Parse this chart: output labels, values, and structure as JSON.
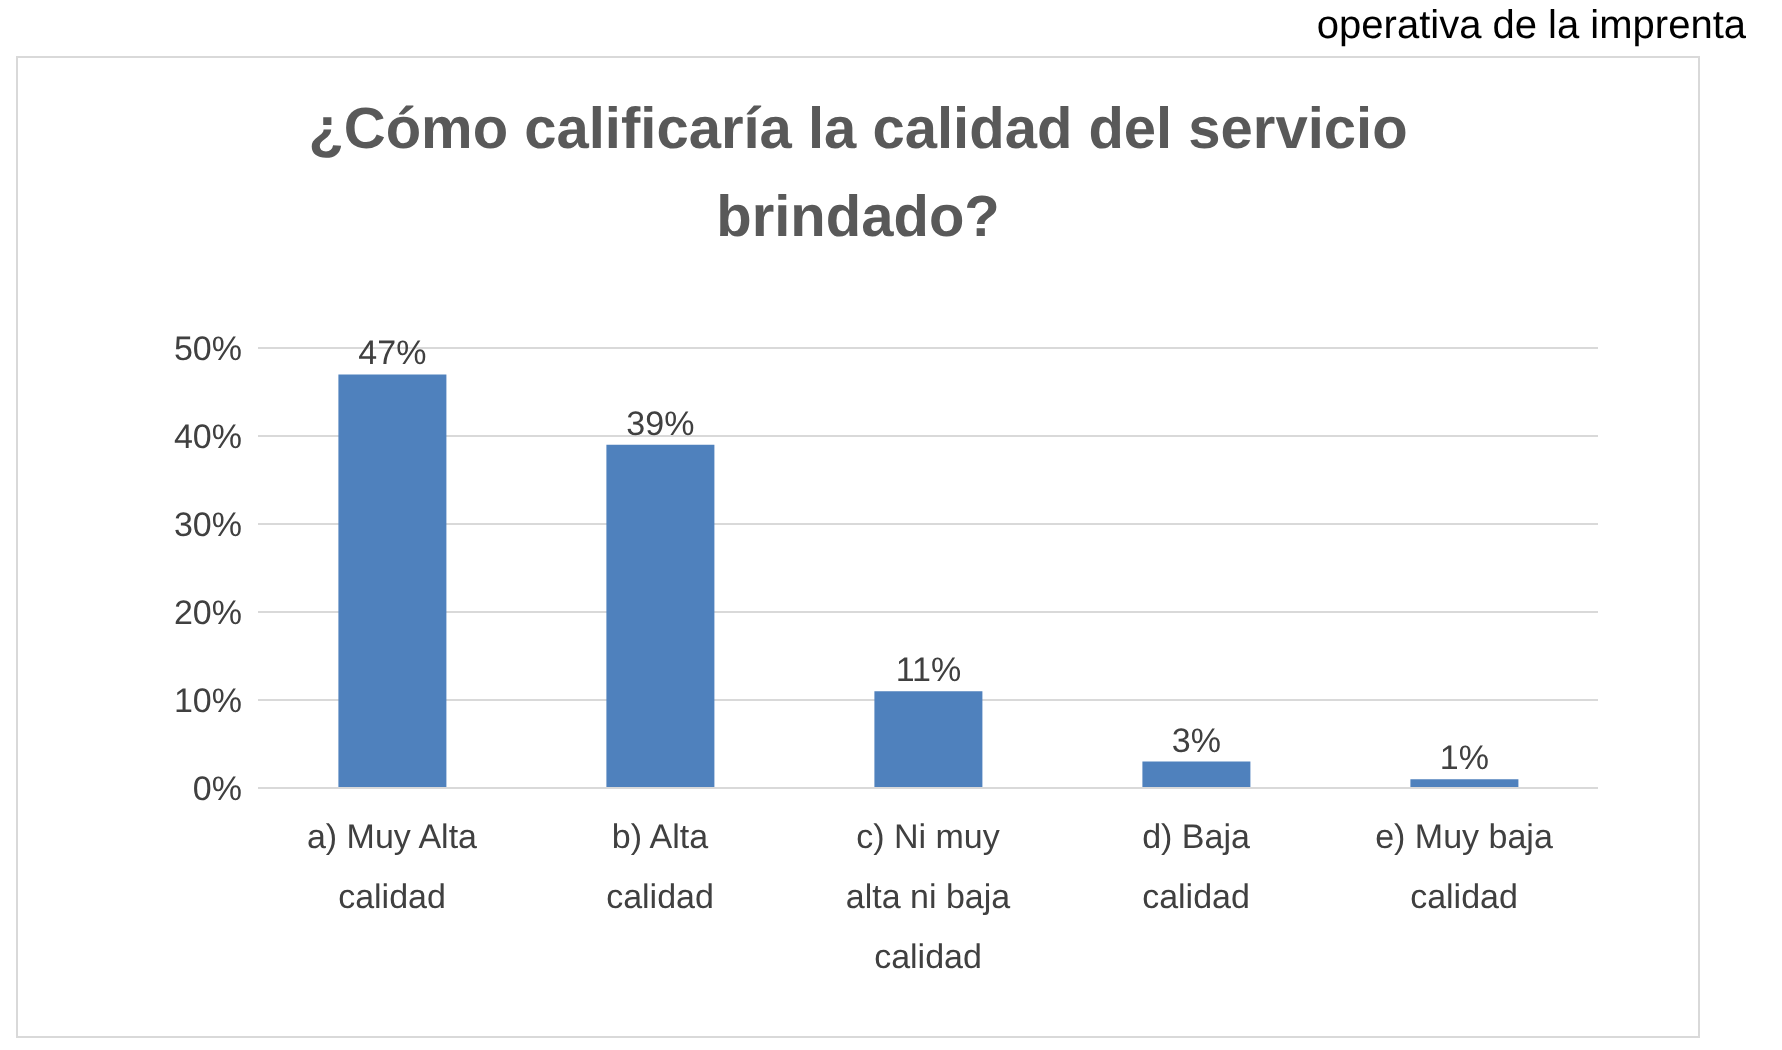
{
  "chart_data": {
    "type": "bar",
    "title": "¿Cómo calificaría la calidad del servicio brindado?",
    "annotations": [
      "operativa de la imprenta"
    ],
    "categories": [
      "a) Muy Alta calidad",
      "b) Alta calidad",
      "c) Ni muy alta ni baja calidad",
      "d) Baja calidad",
      "e) Muy baja calidad"
    ],
    "values": [
      47,
      39,
      11,
      3,
      1
    ],
    "value_labels": [
      "47%",
      "39%",
      "11%",
      "3%",
      "1%"
    ],
    "color": "#4f81bd",
    "ylim": [
      0,
      50
    ],
    "yticks": [
      {
        "value": 0,
        "label": "0%"
      },
      {
        "value": 10,
        "label": "10%"
      },
      {
        "value": 20,
        "label": "20%"
      },
      {
        "value": 30,
        "label": "30%"
      },
      {
        "value": 40,
        "label": "40%"
      },
      {
        "value": 50,
        "label": "50%"
      }
    ],
    "grid": "y"
  }
}
